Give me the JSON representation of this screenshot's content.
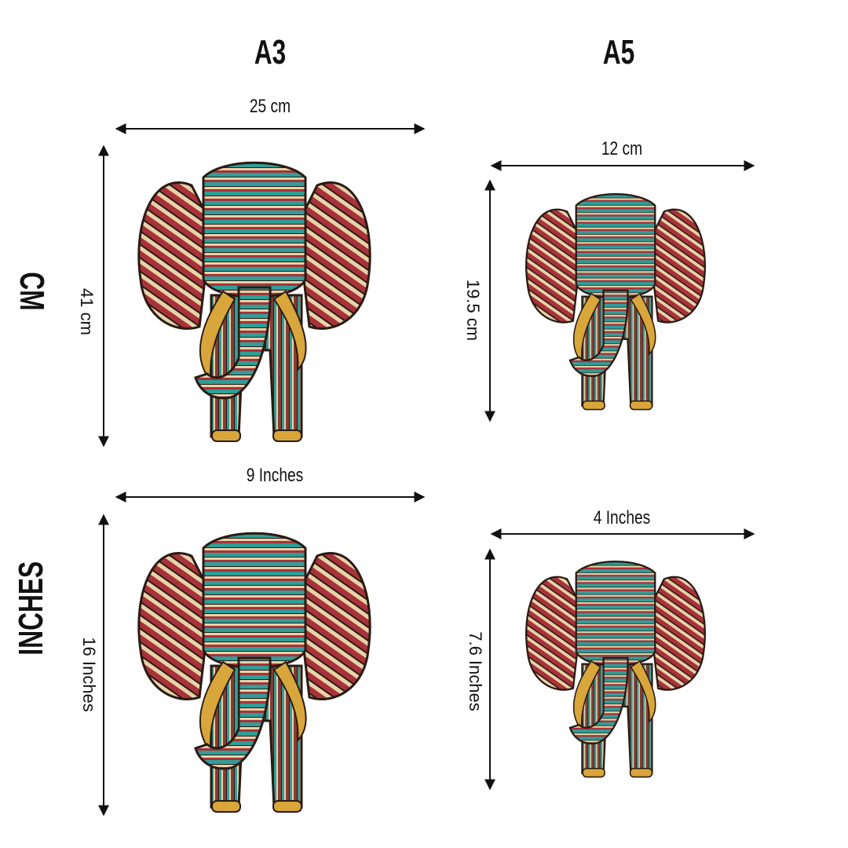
{
  "columns": {
    "a3": "A3",
    "a5": "A5"
  },
  "rows": {
    "cm": "CM",
    "inches": "INCHES"
  },
  "dimensions": {
    "a3_cm_width": "25 cm",
    "a3_cm_height": "41 cm",
    "a5_cm_width": "12 cm",
    "a5_cm_height": "19.5 cm",
    "a3_in_width": "9  Inches",
    "a3_in_height": "16 Inches",
    "a5_in_width": "4  Inches",
    "a5_in_height": "7.6 Inches"
  },
  "colors": {
    "red": "#a8323a",
    "teal": "#2f9e98",
    "cream": "#e8d2a8",
    "gold": "#d8a63a",
    "outline": "#2a1a14"
  }
}
